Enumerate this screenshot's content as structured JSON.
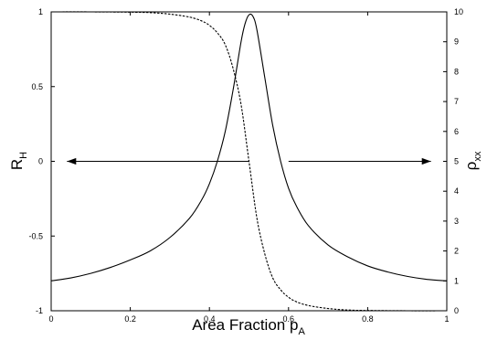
{
  "chart_data": {
    "type": "line",
    "title": "",
    "xlabel_main": "Area Fraction p",
    "xlabel_sub": "A",
    "ylabel_left_main": "R",
    "ylabel_left_sub": "H",
    "ylabel_right_main": "ρ",
    "ylabel_right_sub": "xx",
    "xlim": [
      0,
      1
    ],
    "ylim_left": [
      -1,
      1
    ],
    "ylim_right": [
      0,
      10
    ],
    "x_ticks": [
      "0",
      "0.2",
      "0.4",
      "0.6",
      "0.8",
      "1"
    ],
    "y_left_ticks": [
      "-1",
      "-0.5",
      "0",
      "0.5",
      "1"
    ],
    "y_right_ticks": [
      "0",
      "1",
      "2",
      "3",
      "4",
      "5",
      "6",
      "7",
      "8",
      "9",
      "10"
    ],
    "grid": false,
    "legend": "none",
    "series": [
      {
        "axis": "right",
        "style": "solid",
        "x": [
          0,
          0.05,
          0.1,
          0.15,
          0.2,
          0.25,
          0.3,
          0.35,
          0.38,
          0.4,
          0.42,
          0.44,
          0.46,
          0.48,
          0.49,
          0.5,
          0.51,
          0.52,
          0.54,
          0.56,
          0.58,
          0.6,
          0.62,
          0.65,
          0.7,
          0.75,
          0.8,
          0.85,
          0.9,
          0.95,
          1
        ],
        "y": [
          1.0,
          1.1,
          1.25,
          1.45,
          1.7,
          2.0,
          2.45,
          3.1,
          3.7,
          4.25,
          5.0,
          6.0,
          7.4,
          9.0,
          9.6,
          9.9,
          9.85,
          9.4,
          7.8,
          6.2,
          5.0,
          4.1,
          3.5,
          2.85,
          2.2,
          1.8,
          1.5,
          1.3,
          1.15,
          1.05,
          1.0
        ]
      },
      {
        "axis": "left",
        "style": "dashed",
        "x": [
          0,
          0.1,
          0.2,
          0.25,
          0.3,
          0.35,
          0.38,
          0.4,
          0.42,
          0.44,
          0.46,
          0.48,
          0.5,
          0.52,
          0.54,
          0.56,
          0.58,
          0.6,
          0.62,
          0.65,
          0.7,
          0.75,
          0.8,
          0.9,
          1
        ],
        "y": [
          1.0,
          1.0,
          0.998,
          0.995,
          0.985,
          0.965,
          0.94,
          0.91,
          0.86,
          0.78,
          0.62,
          0.38,
          0.0,
          -0.38,
          -0.62,
          -0.78,
          -0.86,
          -0.91,
          -0.94,
          -0.965,
          -0.985,
          -0.995,
          -0.998,
          -1.0,
          -1.0
        ]
      }
    ],
    "annotations": [
      {
        "type": "arrow",
        "direction": "left",
        "x_from": 0.5,
        "x_to": 0.04,
        "y": 0
      },
      {
        "type": "arrow",
        "direction": "right",
        "x_from": 0.6,
        "x_to": 0.96,
        "y": 0
      }
    ]
  }
}
